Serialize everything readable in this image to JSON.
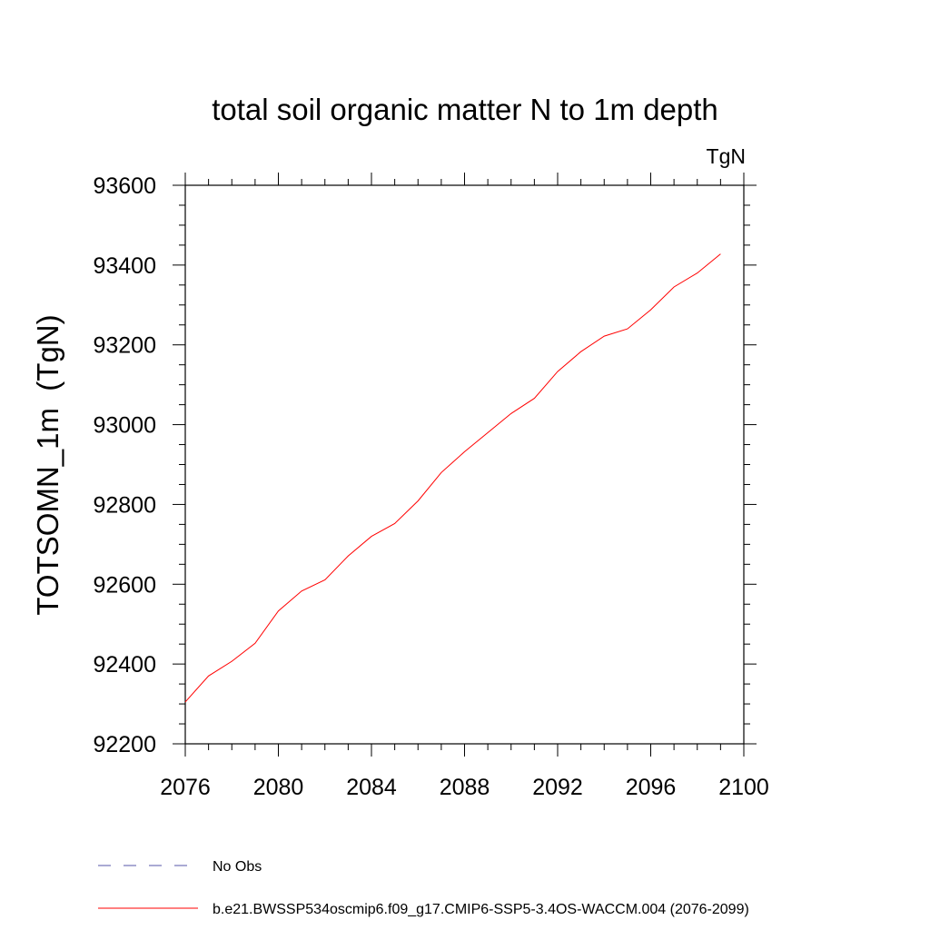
{
  "chart_data": {
    "type": "line",
    "title": "total soil organic matter N to 1m depth",
    "units": "TgN",
    "xlabel": "",
    "ylabel": "TOTSOMN_1m  (TgN)",
    "xlim": [
      2076,
      2100
    ],
    "ylim": [
      92200,
      93600
    ],
    "x_ticks": [
      2076,
      2080,
      2084,
      2088,
      2092,
      2096,
      2100
    ],
    "y_ticks": [
      92200,
      92400,
      92600,
      92800,
      93000,
      93200,
      93400,
      93600
    ],
    "x_minor_step": 1,
    "y_minor_step": 50,
    "grid": false,
    "series": [
      {
        "name": "b.e21.BWSSP534oscmip6.f09_g17.CMIP6-SSP5-3.4OS-WACCM.004 (2076-2099)",
        "color": "#ff0000",
        "dash": "solid",
        "x": [
          2076,
          2077,
          2078,
          2079,
          2080,
          2081,
          2082,
          2083,
          2084,
          2085,
          2086,
          2087,
          2088,
          2089,
          2090,
          2091,
          2092,
          2093,
          2094,
          2095,
          2096,
          2097,
          2098,
          2099
        ],
        "y": [
          92305,
          92370,
          92407,
          92452,
          92533,
          92583,
          92611,
          92671,
          92720,
          92752,
          92809,
          92880,
          92932,
          92980,
          93028,
          93066,
          93133,
          93183,
          93222,
          93240,
          93288,
          93345,
          93380,
          93428
        ]
      }
    ],
    "legend": {
      "placement": "bottom-left",
      "entries": [
        {
          "label": "No Obs",
          "color": "#5555aa",
          "dash": "dashed"
        },
        {
          "label": "b.e21.BWSSP534oscmip6.f09_g17.CMIP6-SSP5-3.4OS-WACCM.004 (2076-2099)",
          "color": "#ff0000",
          "dash": "solid"
        }
      ]
    }
  }
}
